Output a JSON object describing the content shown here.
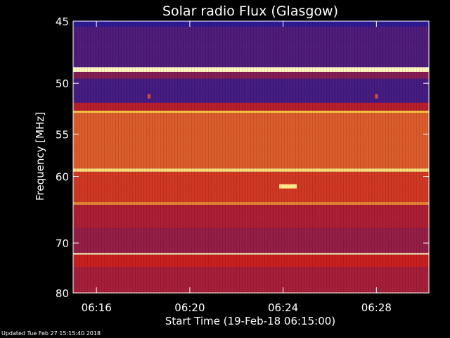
{
  "chart_data": {
    "type": "heatmap",
    "title": "Solar radio Flux (Glasgow)",
    "xlabel": "Start Time (19-Feb-18 06:15:00)",
    "ylabel": "Frequency [MHz]",
    "x_range": [
      "06:15:00",
      "06:30:15"
    ],
    "y_range_mhz": [
      45,
      80
    ],
    "y_scale": "reciprocal (frequency increases downward, compressing at high frequencies)",
    "x_ticks": [
      "06:16",
      "06:20",
      "06:24",
      "06:28"
    ],
    "y_ticks": [
      "45",
      "50",
      "55",
      "60",
      "70",
      "80"
    ],
    "colormap": "blue-red-yellow-white",
    "bands": [
      {
        "mhz_from": 45.0,
        "mhz_to": 45.4,
        "level": 0.05
      },
      {
        "mhz_from": 45.4,
        "mhz_to": 48.6,
        "level": 0.15
      },
      {
        "mhz_from": 48.6,
        "mhz_to": 49.0,
        "level": 0.97
      },
      {
        "mhz_from": 49.0,
        "mhz_to": 49.6,
        "level": 0.3
      },
      {
        "mhz_from": 49.6,
        "mhz_to": 51.8,
        "level": 0.12
      },
      {
        "mhz_from": 51.8,
        "mhz_to": 52.6,
        "level": 0.45
      },
      {
        "mhz_from": 52.6,
        "mhz_to": 52.8,
        "level": 0.85
      },
      {
        "mhz_from": 52.8,
        "mhz_to": 59.0,
        "level": 0.62
      },
      {
        "mhz_from": 59.0,
        "mhz_to": 59.4,
        "level": 0.9
      },
      {
        "mhz_from": 59.4,
        "mhz_to": 63.5,
        "level": 0.55
      },
      {
        "mhz_from": 63.5,
        "mhz_to": 63.9,
        "level": 0.7
      },
      {
        "mhz_from": 63.9,
        "mhz_to": 67.5,
        "level": 0.42
      },
      {
        "mhz_from": 67.5,
        "mhz_to": 71.8,
        "level": 0.35
      },
      {
        "mhz_from": 71.8,
        "mhz_to": 72.1,
        "level": 0.95
      },
      {
        "mhz_from": 72.1,
        "mhz_to": 74.5,
        "level": 0.5
      },
      {
        "mhz_from": 74.5,
        "mhz_to": 80.0,
        "level": 0.4
      }
    ],
    "events": [
      {
        "time": "06:18:15",
        "mhz": 51.2,
        "level": 0.6
      },
      {
        "time": "06:28:00",
        "mhz": 51.2,
        "level": 0.6
      },
      {
        "time_from": "06:23:50",
        "time_to": "06:24:35",
        "mhz": 61.3,
        "level": 0.92
      }
    ]
  },
  "colors": {
    "background": "#000000",
    "low": "#1a1aa0",
    "mid": "#c81e1e",
    "high": "#ffd040",
    "peak": "#ffffe0"
  },
  "footer": {
    "updated": "Updated Tue Feb 27 15:15:40 2018"
  }
}
